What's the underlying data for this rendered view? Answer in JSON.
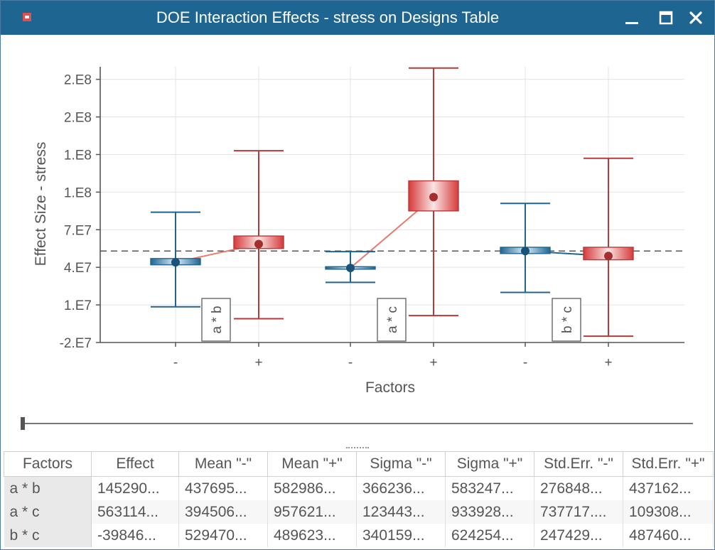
{
  "window": {
    "title": "DOE Interaction Effects - stress on Designs Table",
    "icon": "app-icon",
    "controls": [
      "minimize-icon",
      "maximize-icon",
      "close-icon"
    ]
  },
  "chart_data": {
    "type": "box",
    "title": "",
    "xlabel": "Factors",
    "ylabel": "Effect Size - stress",
    "ylim": [
      -20000000,
      200000000
    ],
    "yticks": [
      -20000000,
      10000000,
      40000000,
      70000000,
      100000000,
      130000000,
      160000000,
      190000000
    ],
    "ytick_labels": [
      "-2.E7",
      "1.E7",
      "4.E7",
      "7.E7",
      "1.E8",
      "1.E8",
      "2.E8",
      "2.E8"
    ],
    "reference_line": 53000000,
    "groups": [
      {
        "label": "a * b",
        "minus": {
          "label": "-",
          "mean": 44000000,
          "box": [
            42000000,
            47000000
          ],
          "whisker": [
            8500000,
            84000000
          ]
        },
        "plus": {
          "label": "+",
          "mean": 58500000,
          "box": [
            55000000,
            65000000
          ],
          "whisker": [
            -1000000,
            133000000
          ]
        }
      },
      {
        "label": "a * c",
        "minus": {
          "label": "-",
          "mean": 39500000,
          "box": [
            38500000,
            40500000
          ],
          "whisker": [
            28000000,
            52500000
          ]
        },
        "plus": {
          "label": "+",
          "mean": 96000000,
          "box": [
            85000000,
            109000000
          ],
          "whisker": [
            1500000,
            199000000
          ]
        }
      },
      {
        "label": "b * c",
        "minus": {
          "label": "-",
          "mean": 53000000,
          "box": [
            51000000,
            56000000
          ],
          "whisker": [
            20000000,
            91000000
          ]
        },
        "plus": {
          "label": "+",
          "mean": 49000000,
          "box": [
            46000000,
            56000000
          ],
          "whisker": [
            -15000000,
            127000000
          ]
        }
      }
    ],
    "colors": {
      "minus": "#1f6591",
      "plus": "#b53a3a",
      "line_minus": "#1f6591",
      "line_plus": "#e77a6a"
    }
  },
  "table": {
    "columns": [
      "Factors",
      "Effect",
      "Mean \"-\"",
      "Mean \"+\"",
      "Sigma \"-\"",
      "Sigma \"+\"",
      "Std.Err. \"-\"",
      "Std.Err. \"+\""
    ],
    "rows": [
      [
        "a * b",
        "145290...",
        "437695...",
        "582986...",
        "366236...",
        "583247...",
        "276848...",
        "437162..."
      ],
      [
        "a * c",
        "563114...",
        "394506...",
        "957621...",
        "123443...",
        "933928...",
        "737717....",
        "109308..."
      ],
      [
        "b * c",
        "-39846...",
        "529470...",
        "489623...",
        "340159...",
        "624254...",
        "247429...",
        "487460..."
      ]
    ]
  }
}
